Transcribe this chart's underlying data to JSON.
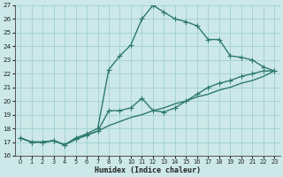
{
  "xlabel": "Humidex (Indice chaleur)",
  "bg_color": "#cce8e8",
  "grid_color": "#99cccc",
  "line_color": "#2d7a6e",
  "xlim": [
    -0.5,
    23.5
  ],
  "ylim": [
    16,
    27
  ],
  "xticks": [
    0,
    1,
    2,
    3,
    4,
    5,
    6,
    7,
    8,
    9,
    10,
    11,
    12,
    13,
    14,
    15,
    16,
    17,
    18,
    19,
    20,
    21,
    22,
    23
  ],
  "yticks": [
    16,
    17,
    18,
    19,
    20,
    21,
    22,
    23,
    24,
    25,
    26,
    27
  ],
  "line1_x": [
    0,
    1,
    2,
    3,
    4,
    5,
    6,
    7,
    8,
    9,
    10,
    11,
    12,
    13,
    14,
    15,
    16,
    17,
    18,
    19,
    20,
    21,
    22,
    23
  ],
  "line1_y": [
    17.3,
    17.0,
    17.0,
    17.1,
    16.8,
    17.3,
    17.6,
    18.0,
    22.3,
    23.3,
    24.1,
    26.0,
    27.0,
    26.5,
    26.0,
    25.8,
    25.5,
    24.5,
    24.5,
    23.3,
    23.2,
    23.0,
    22.5,
    22.2
  ],
  "line2_x": [
    0,
    1,
    2,
    3,
    4,
    5,
    6,
    7,
    8,
    9,
    10,
    11,
    12,
    13,
    14,
    15,
    16,
    17,
    18,
    19,
    20,
    21,
    22,
    23
  ],
  "line2_y": [
    17.3,
    17.0,
    17.0,
    17.1,
    16.8,
    17.2,
    17.5,
    17.8,
    19.3,
    19.3,
    19.5,
    20.2,
    19.3,
    19.2,
    19.5,
    20.0,
    20.5,
    21.0,
    21.3,
    21.5,
    21.8,
    22.0,
    22.2,
    22.2
  ],
  "line3_x": [
    0,
    1,
    2,
    3,
    4,
    5,
    6,
    7,
    8,
    9,
    10,
    11,
    12,
    13,
    14,
    15,
    16,
    17,
    18,
    19,
    20,
    21,
    22,
    23
  ],
  "line3_y": [
    17.3,
    17.0,
    17.0,
    17.1,
    16.8,
    17.2,
    17.5,
    17.8,
    18.2,
    18.5,
    18.8,
    19.0,
    19.3,
    19.5,
    19.8,
    20.0,
    20.3,
    20.5,
    20.8,
    21.0,
    21.3,
    21.5,
    21.8,
    22.2
  ],
  "marker_size": 2.5,
  "linewidth": 1.0
}
